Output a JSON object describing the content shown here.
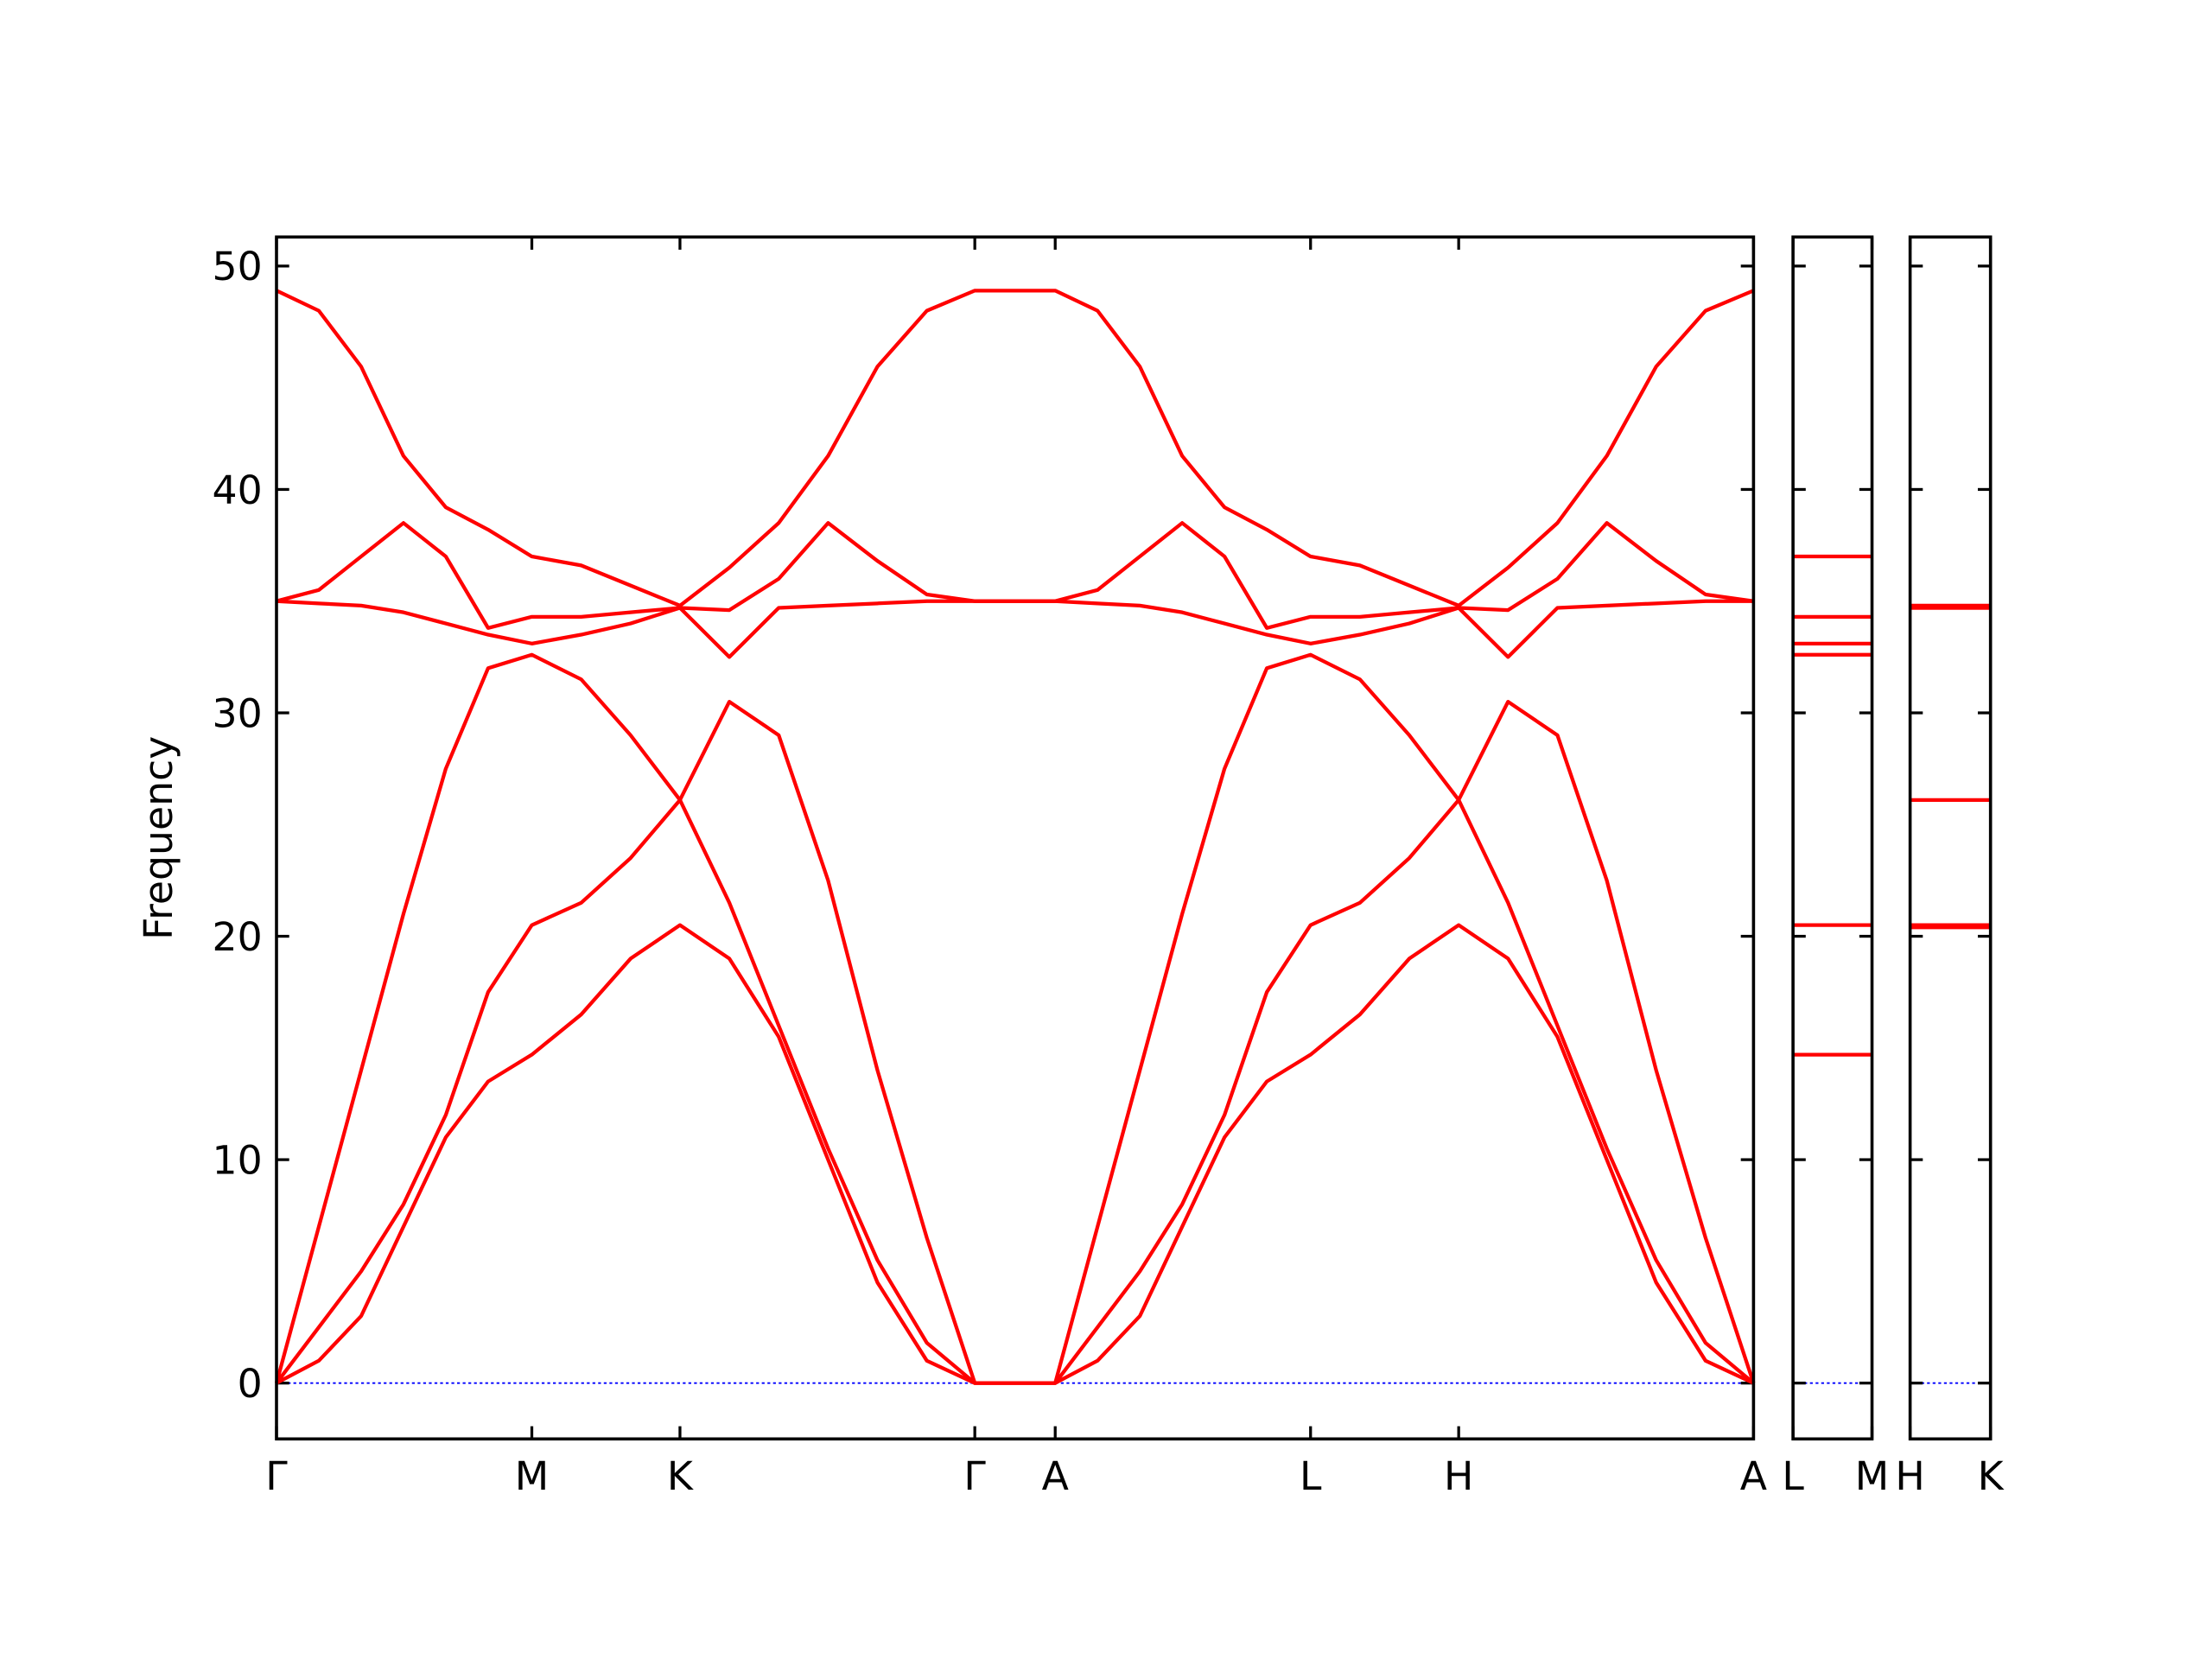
{
  "chart_data": [
    {
      "type": "line",
      "ylabel": "Frequency",
      "x": [
        0,
        30,
        60,
        90,
        120,
        150,
        181,
        216,
        251,
        286,
        321,
        356,
        391,
        426,
        461,
        495,
        552,
        582,
        612,
        642,
        672,
        702,
        733,
        768,
        803,
        838,
        873,
        908,
        943,
        978,
        1013,
        1047
      ],
      "xlim": [
        0,
        1047
      ],
      "xticks": [
        {
          "value": 0,
          "label": "Γ"
        },
        {
          "value": 181,
          "label": "M"
        },
        {
          "value": 286,
          "label": "K"
        },
        {
          "value": 495,
          "label": "Γ"
        },
        {
          "value": 552,
          "label": "A"
        },
        {
          "value": 733,
          "label": "L"
        },
        {
          "value": 838,
          "label": "H"
        },
        {
          "value": 1047,
          "label": "A"
        }
      ],
      "ylim": [
        -2.5,
        51.3
      ],
      "yticks": [
        0,
        10,
        20,
        30,
        40,
        50
      ],
      "ytick_labels": true,
      "zero_line_color": "#0000ff",
      "series": [
        {
          "color": "#ff0000",
          "values": [
            0,
            1,
            3,
            7,
            11,
            13.5,
            14.7,
            16.5,
            19,
            20.5,
            19,
            15.5,
            10,
            4.5,
            1,
            0,
            0,
            1,
            3,
            7,
            11,
            13.5,
            14.7,
            16.5,
            19,
            20.5,
            19,
            15.5,
            10,
            4.5,
            1,
            0
          ]
        },
        {
          "color": "#ff0000",
          "values": [
            0,
            2.5,
            5,
            8,
            12,
            17.5,
            20.5,
            21.5,
            23.5,
            26.1,
            21.5,
            16,
            10.5,
            5.5,
            1.8,
            0,
            0,
            2.5,
            5,
            8,
            12,
            17.5,
            20.5,
            21.5,
            23.5,
            26.1,
            21.5,
            16,
            10.5,
            5.5,
            1.8,
            0
          ]
        },
        {
          "color": "#ff0000",
          "values": [
            0,
            7,
            14,
            21,
            27.5,
            32,
            32.6,
            31.5,
            29,
            26.1,
            30.5,
            29,
            22.5,
            14,
            6.5,
            0,
            0,
            7,
            14,
            21,
            27.5,
            32,
            32.6,
            31.5,
            29,
            26.1,
            30.5,
            29,
            22.5,
            14,
            6.5,
            0
          ]
        },
        {
          "color": "#ff0000",
          "values": [
            35,
            34.9,
            34.8,
            34.5,
            34.0,
            33.5,
            33.1,
            33.5,
            34.0,
            34.7,
            32.5,
            34.7,
            34.8,
            34.9,
            35,
            35,
            35,
            34.9,
            34.8,
            34.5,
            34.0,
            33.5,
            33.1,
            33.5,
            34.0,
            34.7,
            32.5,
            34.7,
            34.8,
            34.9,
            35,
            35
          ]
        },
        {
          "color": "#ff0000",
          "values": [
            35,
            35.5,
            37,
            38.5,
            37,
            33.8,
            34.3,
            34.3,
            34.5,
            34.7,
            34.6,
            36,
            38.5,
            36.8,
            35.3,
            35,
            35,
            35.5,
            37,
            38.5,
            37,
            33.8,
            34.3,
            34.3,
            34.5,
            34.7,
            34.6,
            36,
            38.5,
            36.8,
            35.3,
            35
          ]
        },
        {
          "color": "#ff0000",
          "values": [
            48.9,
            48,
            45.5,
            41.5,
            39.2,
            38.2,
            37.0,
            36.6,
            35.7,
            34.8,
            36.5,
            38.5,
            41.5,
            45.5,
            48,
            48.9,
            48.9,
            48,
            45.5,
            41.5,
            39.2,
            38.2,
            37.0,
            36.6,
            35.7,
            34.8,
            36.5,
            38.5,
            41.5,
            45.5,
            48,
            48.9
          ]
        }
      ]
    },
    {
      "type": "line",
      "x": [
        0,
        1
      ],
      "xlim": [
        0,
        1
      ],
      "xticks": [
        {
          "value": 0,
          "label": "L"
        },
        {
          "value": 1,
          "label": "M"
        }
      ],
      "ylim": [
        -2.5,
        51.3
      ],
      "yticks": [
        0,
        10,
        20,
        30,
        40,
        50
      ],
      "ytick_labels": false,
      "zero_line_color": "#0000ff",
      "series": [
        {
          "color": "#ff0000",
          "values": [
            14.7,
            14.7
          ]
        },
        {
          "color": "#ff0000",
          "values": [
            20.5,
            20.5
          ]
        },
        {
          "color": "#ff0000",
          "values": [
            32.6,
            32.6
          ]
        },
        {
          "color": "#ff0000",
          "values": [
            33.1,
            33.1
          ]
        },
        {
          "color": "#ff0000",
          "values": [
            34.3,
            34.3
          ]
        },
        {
          "color": "#ff0000",
          "values": [
            37.0,
            37.0
          ]
        }
      ]
    },
    {
      "type": "line",
      "x": [
        0,
        1
      ],
      "xlim": [
        0,
        1
      ],
      "xticks": [
        {
          "value": 0,
          "label": "H"
        },
        {
          "value": 1,
          "label": "K"
        }
      ],
      "ylim": [
        -2.5,
        51.3
      ],
      "yticks": [
        0,
        10,
        20,
        30,
        40,
        50
      ],
      "ytick_labels": false,
      "zero_line_color": "#0000ff",
      "series": [
        {
          "color": "#ff0000",
          "values": [
            20.4,
            20.4
          ]
        },
        {
          "color": "#ff0000",
          "values": [
            20.5,
            20.5
          ]
        },
        {
          "color": "#ff0000",
          "values": [
            26.1,
            26.1
          ]
        },
        {
          "color": "#ff0000",
          "values": [
            34.7,
            34.7
          ]
        },
        {
          "color": "#ff0000",
          "values": [
            34.7,
            34.7
          ]
        },
        {
          "color": "#ff0000",
          "values": [
            34.8,
            34.8
          ]
        }
      ]
    }
  ]
}
